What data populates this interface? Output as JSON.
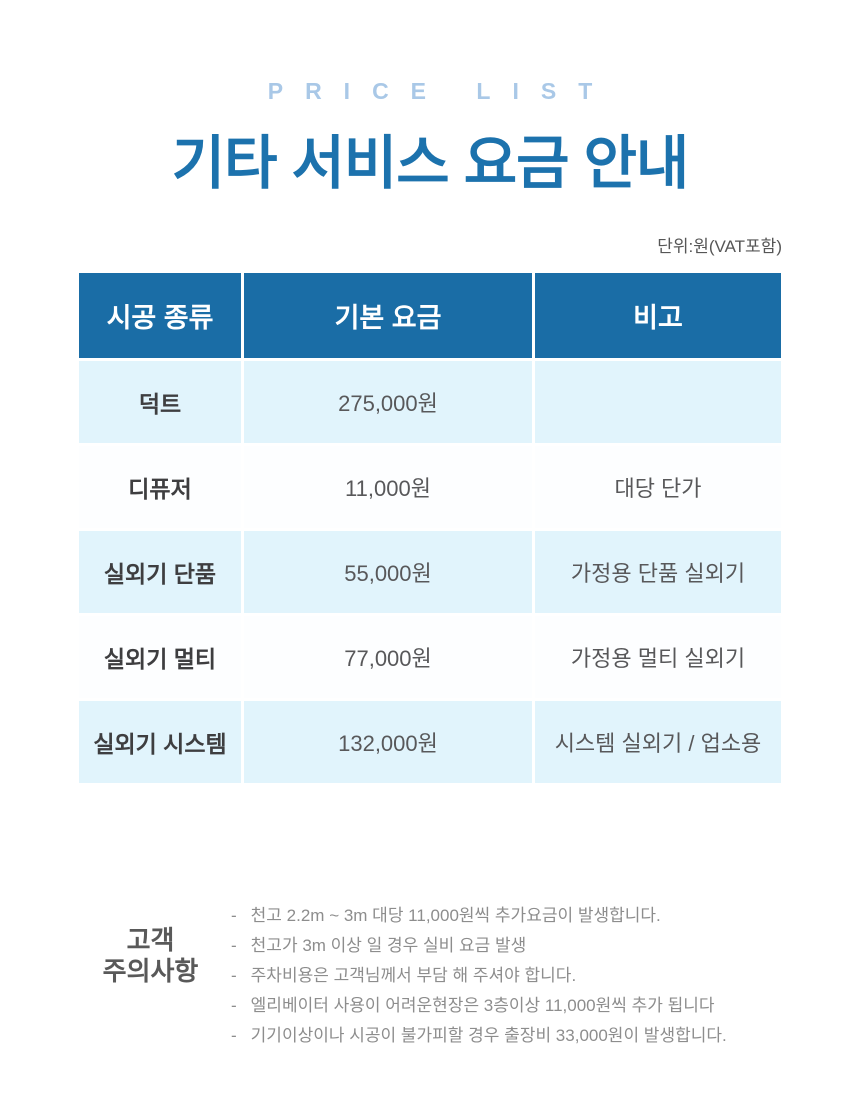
{
  "page": {
    "eyebrow": "PRICE LIST",
    "title": "기타 서비스 요금 안내",
    "unit_note": "단위:원(VAT포함)"
  },
  "table": {
    "columns": [
      "시공 종류",
      "기본 요금",
      "비고"
    ],
    "rows": [
      {
        "type": "덕트",
        "price": "275,000원",
        "note": ""
      },
      {
        "type": "디퓨저",
        "price": "11,000원",
        "note": "대당 단가"
      },
      {
        "type": "실외기 단품",
        "price": "55,000원",
        "note": "가정용 단품 실외기"
      },
      {
        "type": "실외기 멀티",
        "price": "77,000원",
        "note": "가정용 멀티 실외기"
      },
      {
        "type": "실외기 시스템",
        "price": "132,000원",
        "note": "시스템 실외기 / 업소용"
      }
    ]
  },
  "notices": {
    "bullet": "-",
    "title_line1": "고객",
    "title_line2": "주의사항",
    "items": [
      "천고 2.2m ~ 3m 대당 11,000원씩 추가요금이 발생합니다.",
      "천고가 3m 이상 일 경우 실비 요금 발생",
      "주차비용은 고객님께서 부담 해 주셔야 합니다.",
      "엘리베이터 사용이 어려운현장은 3층이상 11,000원씩 추가 됩니다",
      "기기이상이나 시공이 불가피할 경우 출장비 33,000원이 발생합니다."
    ]
  },
  "colors": {
    "header_bg": "#1a6da6",
    "title_blue": "#1c72ad",
    "eyebrow_blue": "#a9c8e7",
    "row_tint": "#e1f4fc",
    "note_text": "#8d8d8d"
  }
}
